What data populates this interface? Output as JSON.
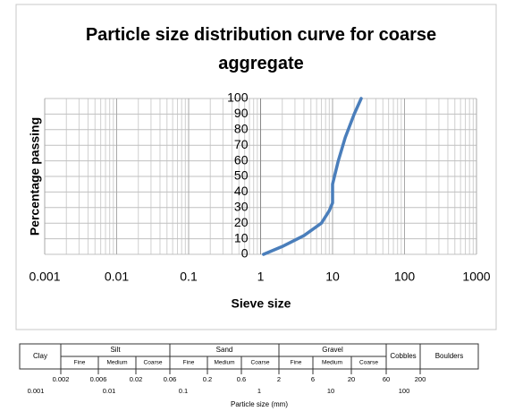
{
  "chart_data": {
    "type": "line",
    "title": "Particle size distribution curve for coarse aggregate",
    "x_label": "Sieve size",
    "y_label": "Percentage passing",
    "x": [
      1.1,
      2,
      4,
      7,
      9,
      10,
      10,
      12,
      15,
      20,
      25
    ],
    "values": [
      0,
      5,
      12,
      20,
      28,
      33,
      45,
      60,
      75,
      90,
      100
    ],
    "color": "#4a7ebb",
    "xlim": [
      0.001,
      1000
    ],
    "xticks": [
      0.001,
      0.01,
      0.1,
      1,
      10,
      100,
      1000
    ],
    "xscale": "log",
    "ylim": [
      0,
      100
    ],
    "yticks": [
      0,
      10,
      20,
      30,
      40,
      50,
      60,
      70,
      80,
      90,
      100
    ],
    "grid": true
  },
  "classification_table": {
    "classes": [
      "Clay",
      "Silt",
      "Sand",
      "Gravel",
      "Cobbles",
      "Boulders"
    ],
    "subclasses": [
      "Fine",
      "Medium",
      "Coarse"
    ],
    "boundaries": [
      "0.002",
      "0.006",
      "0.02",
      "0.06",
      "0.2",
      "0.6",
      "2",
      "6",
      "20",
      "60",
      "200"
    ],
    "scale": [
      "0.001",
      "0.01",
      "0.1",
      "1",
      "10",
      "100"
    ],
    "axis_label": "Particle size (mm)"
  }
}
